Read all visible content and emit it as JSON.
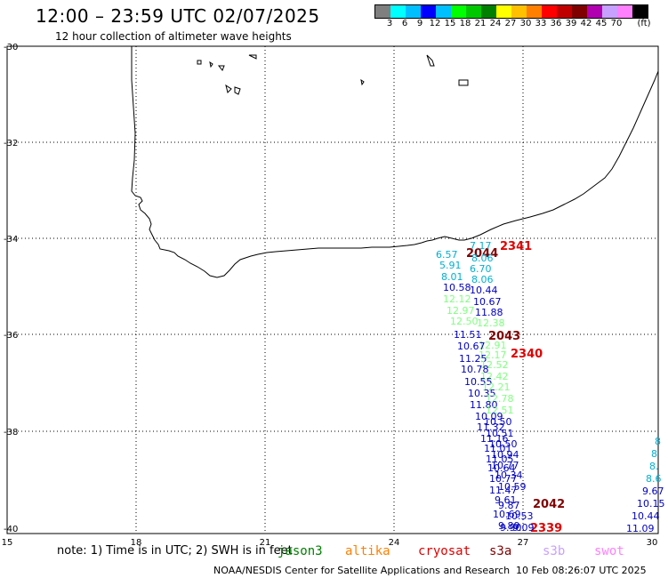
{
  "header": {
    "title": "12:00 – 23:59 UTC 02/07/2025",
    "subtitle": "12 hour collection of altimeter wave heights"
  },
  "colorbar": {
    "colors": [
      "#7f7f7f",
      "#00ffff",
      "#00bfff",
      "#0000ff",
      "#00c0ff",
      "#00ff00",
      "#00c800",
      "#008000",
      "#ffff00",
      "#ffc000",
      "#ff8000",
      "#ff0000",
      "#c00000",
      "#800000",
      "#b000b0",
      "#c8a0ff",
      "#ff80ff",
      "#000000"
    ],
    "labels": [
      "3",
      "6",
      "9",
      "12",
      "15",
      "18",
      "21",
      "24",
      "27",
      "30",
      "33",
      "36",
      "39",
      "42",
      "45",
      "70",
      "(ft)"
    ]
  },
  "axes": {
    "x_ticks": [
      "15",
      "18",
      "21",
      "24",
      "27",
      "30"
    ],
    "y_ticks": [
      "-30",
      "-32",
      "-34",
      "-36",
      "-38",
      "-40"
    ]
  },
  "track_labels": {
    "times": [
      {
        "text": "2341",
        "color": "#e00000"
      },
      {
        "text": "2044",
        "color": "#800000"
      },
      {
        "text": "2043",
        "color": "#800000"
      },
      {
        "text": "2340",
        "color": "#e00000"
      },
      {
        "text": "2042",
        "color": "#800000"
      },
      {
        "text": "2339",
        "color": "#e00000"
      }
    ],
    "values": [
      {
        "text": "7.17",
        "color": "#00b0d0"
      },
      {
        "text": "6.57",
        "color": "#00b0d0"
      },
      {
        "text": "8.06",
        "color": "#00b0d0"
      },
      {
        "text": "5.91",
        "color": "#00b0d0"
      },
      {
        "text": "6.70",
        "color": "#00b0d0"
      },
      {
        "text": "8.01",
        "color": "#00b0d0"
      },
      {
        "text": "8.06",
        "color": "#00b0d0"
      },
      {
        "text": "10.58",
        "color": "#0000c0"
      },
      {
        "text": "10.44",
        "color": "#0000c0"
      },
      {
        "text": "12.12",
        "color": "#80ff80"
      },
      {
        "text": "10.67",
        "color": "#0000c0"
      },
      {
        "text": "12.97",
        "color": "#80ff80"
      },
      {
        "text": "11.88",
        "color": "#0000c0"
      },
      {
        "text": "12.50",
        "color": "#80ff80"
      },
      {
        "text": "12.38",
        "color": "#80ff80"
      },
      {
        "text": "11.51",
        "color": "#0000c0"
      },
      {
        "text": "12.91",
        "color": "#80ff80"
      },
      {
        "text": "10.67",
        "color": "#0000c0"
      },
      {
        "text": "12.17",
        "color": "#80ff80"
      },
      {
        "text": "11.25",
        "color": "#0000c0"
      },
      {
        "text": "12.52",
        "color": "#80ff80"
      },
      {
        "text": "10.78",
        "color": "#0000c0"
      },
      {
        "text": "12.42",
        "color": "#80ff80"
      },
      {
        "text": "10.55",
        "color": "#0000c0"
      },
      {
        "text": "12.21",
        "color": "#80ff80"
      },
      {
        "text": "10.35",
        "color": "#0000c0"
      },
      {
        "text": "12.78",
        "color": "#80ff80"
      },
      {
        "text": "11.80",
        "color": "#0000c0"
      },
      {
        "text": "12.51",
        "color": "#80ff80"
      },
      {
        "text": "10.09",
        "color": "#0000c0"
      },
      {
        "text": "11.32",
        "color": "#0000c0"
      },
      {
        "text": "10.50",
        "color": "#0000c0"
      },
      {
        "text": "11.16",
        "color": "#0000c0"
      },
      {
        "text": "10.51",
        "color": "#0000c0"
      },
      {
        "text": "11.01",
        "color": "#0000c0"
      },
      {
        "text": "10.50",
        "color": "#0000c0"
      },
      {
        "text": "11.05",
        "color": "#0000c0"
      },
      {
        "text": "10.94",
        "color": "#0000c0"
      },
      {
        "text": "10.64",
        "color": "#0000c0"
      },
      {
        "text": "10.77",
        "color": "#0000c0"
      },
      {
        "text": "10.77",
        "color": "#0000c0"
      },
      {
        "text": "10.34",
        "color": "#0000c0"
      },
      {
        "text": "11.47",
        "color": "#0000c0"
      },
      {
        "text": "10.59",
        "color": "#0000c0"
      },
      {
        "text": "9.61",
        "color": "#0000c0"
      },
      {
        "text": "9.87",
        "color": "#0000c0"
      },
      {
        "text": "10.53",
        "color": "#0000c0"
      },
      {
        "text": "10.69",
        "color": "#0000c0"
      },
      {
        "text": "9.89",
        "color": "#0000c0"
      },
      {
        "text": "9.90",
        "color": "#0000c0"
      },
      {
        "text": "9.09",
        "color": "#0000c0"
      },
      {
        "text": "8",
        "color": "#00b0d0"
      },
      {
        "text": "8",
        "color": "#00b0d0"
      },
      {
        "text": "8.",
        "color": "#00b0d0"
      },
      {
        "text": "8.6",
        "color": "#00b0d0"
      },
      {
        "text": "9.67",
        "color": "#0000c0"
      },
      {
        "text": "10.15",
        "color": "#0000c0"
      },
      {
        "text": "10.44",
        "color": "#0000c0"
      },
      {
        "text": "11.09",
        "color": "#0000c0"
      }
    ]
  },
  "footer": {
    "note": "note:  1) Time is in UTC; 2) SWH is in feet",
    "legend": [
      {
        "text": "jason3",
        "color": "#008000"
      },
      {
        "text": "altika",
        "color": "#ff8000"
      },
      {
        "text": "cryosat",
        "color": "#e00000"
      },
      {
        "text": "s3a",
        "color": "#800000"
      },
      {
        "text": "s3b",
        "color": "#c8a0ff"
      },
      {
        "text": "swot",
        "color": "#ff80ff"
      }
    ],
    "credit": "NOAA/NESDIS Center for Satellite Applications and Research",
    "timestamp": "10 Feb 08:26:07 UTC 2025"
  }
}
